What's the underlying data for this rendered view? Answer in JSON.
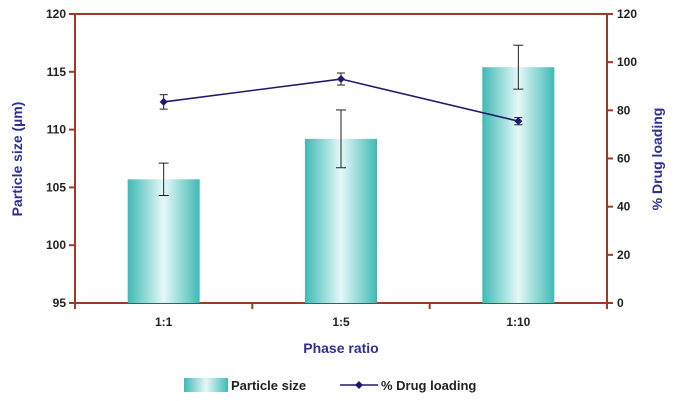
{
  "chart_data": {
    "type": "bar",
    "categories": [
      "1:1",
      "1:5",
      "1:10"
    ],
    "xlabel": "Phase ratio",
    "ylabel": "Particle size (µm)",
    "y2label": "% Drug loading",
    "ylim": [
      95,
      120
    ],
    "yticks": [
      95,
      100,
      105,
      110,
      115,
      120
    ],
    "y2lim": [
      0,
      120
    ],
    "y2ticks": [
      0,
      20,
      40,
      60,
      80,
      100,
      120
    ],
    "grid": false,
    "legend_position": "bottom",
    "series": [
      {
        "name": "Particle size",
        "type": "bar",
        "axis": "left",
        "values": [
          105.7,
          109.2,
          115.4
        ],
        "error": [
          1.4,
          2.5,
          1.9
        ],
        "color": "#5fcfcb"
      },
      {
        "name": "% Drug loading",
        "type": "line",
        "axis": "right",
        "values": [
          83.5,
          93.0,
          75.5
        ],
        "error": [
          3.0,
          2.5,
          1.5
        ],
        "color": "#1f1a6e"
      }
    ],
    "axis_color": "#9b3a2a",
    "title_color": "#2e3192"
  }
}
